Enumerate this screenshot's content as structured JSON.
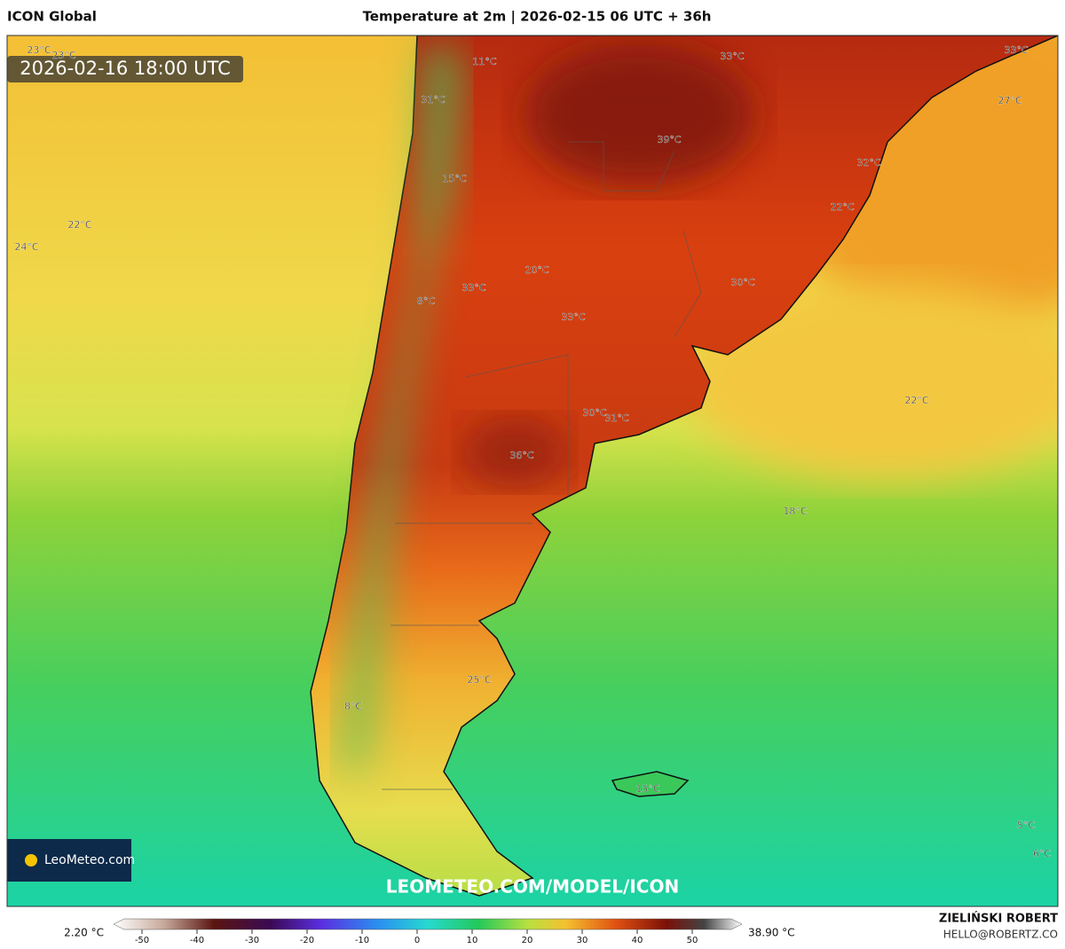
{
  "header": {
    "model": "ICON Global",
    "title": "Temperature at 2m | 2026-02-15 06 UTC + 36h"
  },
  "valid_time": "2026-02-16 18:00 UTC",
  "map_labels": [
    "23°C",
    "23°C",
    "11°C",
    "33°C",
    "33°C",
    "31°C",
    "27°C",
    "39°C",
    "32°C",
    "15°C",
    "22°C",
    "22°C",
    "24°C",
    "20°C",
    "33°C",
    "8°C",
    "33°C",
    "30°C",
    "30°C",
    "31°C",
    "22°C",
    "36°C",
    "18°C",
    "25°C",
    "8°C",
    "15°C",
    "5°C",
    "6°C"
  ],
  "logo": "LeoMeteo.com",
  "watermark": "LEOMETEO.COM/MODEL/ICON",
  "colorbar": {
    "min_label": "2.20 °C",
    "max_label": "38.90 °C",
    "ticks": [
      -50,
      -40,
      -30,
      -20,
      -10,
      0,
      10,
      20,
      30,
      40,
      50
    ]
  },
  "footer": {
    "author": "ZIELIŃSKI ROBERT",
    "email": "HELLO@ROBERTZ.CO"
  }
}
